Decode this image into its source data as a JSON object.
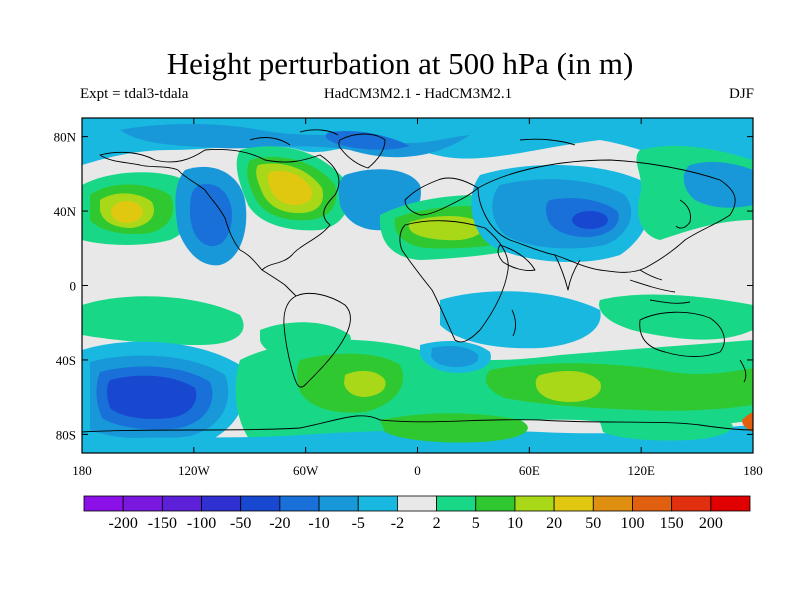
{
  "title": "Height perturbation at 500 hPa (in m)",
  "subtitle_left": "Expt = tdal3-tdala",
  "subtitle_center": "HadCM3M2.1 - HadCM3M2.1",
  "subtitle_right": "DJF",
  "map": {
    "projection": "cylindrical-equidistant",
    "lon_range": [
      -180,
      180
    ],
    "lat_range": [
      -90,
      90
    ],
    "background_color": "#e8e8e8",
    "coastline_color": "#000000",
    "lat_tick_labels": [
      {
        "lat": 80,
        "label": "80N"
      },
      {
        "lat": 40,
        "label": "40N"
      },
      {
        "lat": 0,
        "label": "0"
      },
      {
        "lat": -40,
        "label": "40S"
      },
      {
        "lat": -80,
        "label": "80S"
      }
    ],
    "lon_tick_labels": [
      {
        "lon": -180,
        "label": "180"
      },
      {
        "lon": -120,
        "label": "120W"
      },
      {
        "lon": -60,
        "label": "60W"
      },
      {
        "lon": 0,
        "label": "0"
      },
      {
        "lon": 60,
        "label": "60E"
      },
      {
        "lon": 120,
        "label": "120E"
      },
      {
        "lon": 180,
        "label": "180"
      }
    ],
    "anomaly_regions": [
      {
        "name": "north-pacific-positive",
        "lon": -155,
        "lat": 42,
        "level": 20
      },
      {
        "name": "canada-positive",
        "lon": -80,
        "lat": 52,
        "level": 50
      },
      {
        "name": "north-africa-positive",
        "lon": 15,
        "lat": 28,
        "level": 10
      },
      {
        "name": "central-asia-negative",
        "lon": 90,
        "lat": 40,
        "level": -20
      },
      {
        "name": "north-atlantic-negative",
        "lon": -45,
        "lat": 45,
        "level": -10
      },
      {
        "name": "south-pacific-negative",
        "lon": -140,
        "lat": -55,
        "level": -50
      },
      {
        "name": "south-atlantic-positive",
        "lon": -25,
        "lat": -55,
        "level": 10
      },
      {
        "name": "southern-ocean-positive",
        "lon": 85,
        "lat": -55,
        "level": 20
      },
      {
        "name": "tropical-pacific-positive",
        "lon": -120,
        "lat": -15,
        "level": 5
      }
    ]
  },
  "colorbar": {
    "labels": [
      "-200",
      "-150",
      "-100",
      "-50",
      "-20",
      "-10",
      "-5",
      "-2",
      "2",
      "5",
      "10",
      "20",
      "50",
      "100",
      "150",
      "200"
    ],
    "colors": [
      "#8c10e8",
      "#7a18e0",
      "#5c20d8",
      "#3030d0",
      "#1848d0",
      "#1870d8",
      "#1898d8",
      "#18b8e0",
      "#e8e8e8",
      "#18d888",
      "#30c830",
      "#a8d818",
      "#e0c810",
      "#e09010",
      "#e06010",
      "#e03010",
      "#e00000"
    ]
  }
}
